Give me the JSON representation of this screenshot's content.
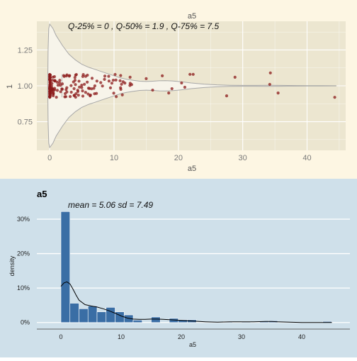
{
  "chart_data": [
    {
      "type": "violin",
      "title": "a5",
      "annotation": "Q-25% =  0 ,  Q-50% =  1.9 ,  Q-75% = 7.5",
      "xlabel": "a5",
      "ylabel": "1",
      "xlim": [
        -2,
        46
      ],
      "ylim": [
        0.55,
        1.45
      ],
      "xticks": [
        0,
        10,
        20,
        30,
        40
      ],
      "yticks": [
        0.75,
        1.0,
        1.25
      ],
      "ytick_labels": [
        "0.75",
        "1.00",
        "1.25"
      ],
      "quartiles": {
        "q25": 0,
        "q50": 1.9,
        "q75": 7.5
      },
      "grid": true,
      "colors": {
        "background": "#fdf6e3",
        "panel": "#ece6d0",
        "violin_fill": "#f7f4ea",
        "point": "#8b1a1a"
      }
    },
    {
      "type": "histogram",
      "title": "a5",
      "annotation": "mean =  5.06   sd = 7.49",
      "xlabel": "a5",
      "ylabel": "density",
      "xlim": [
        -4,
        48
      ],
      "ylim": [
        -0.015,
        0.335
      ],
      "xticks": [
        0,
        10,
        20,
        30,
        40
      ],
      "yticks": [
        0,
        0.1,
        0.2,
        0.3
      ],
      "ytick_labels": [
        "0%",
        "10%",
        "20%",
        "30%"
      ],
      "bin_width": 1.5,
      "bins": [
        {
          "x0": 0,
          "x1": 1.5,
          "value": 0.322
        },
        {
          "x0": 1.5,
          "x1": 3,
          "value": 0.056
        },
        {
          "x0": 3,
          "x1": 4.5,
          "value": 0.04
        },
        {
          "x0": 4.5,
          "x1": 6,
          "value": 0.048
        },
        {
          "x0": 6,
          "x1": 7.5,
          "value": 0.031
        },
        {
          "x0": 7.5,
          "x1": 9,
          "value": 0.044
        },
        {
          "x0": 9,
          "x1": 10.5,
          "value": 0.031
        },
        {
          "x0": 10.5,
          "x1": 12,
          "value": 0.022
        },
        {
          "x0": 12,
          "x1": 13.5,
          "value": 0.007
        },
        {
          "x0": 13.5,
          "x1": 15,
          "value": 0.0
        },
        {
          "x0": 15,
          "x1": 16.5,
          "value": 0.016
        },
        {
          "x0": 16.5,
          "x1": 18,
          "value": 0.0
        },
        {
          "x0": 18,
          "x1": 19.5,
          "value": 0.012
        },
        {
          "x0": 19.5,
          "x1": 21,
          "value": 0.008
        },
        {
          "x0": 21,
          "x1": 22.5,
          "value": 0.008
        },
        {
          "x0": 22.5,
          "x1": 24,
          "value": 0.0
        },
        {
          "x0": 24,
          "x1": 25.5,
          "value": 0.0
        },
        {
          "x0": 25.5,
          "x1": 27,
          "value": 0.0
        },
        {
          "x0": 27,
          "x1": 28.5,
          "value": 0.003
        },
        {
          "x0": 28.5,
          "x1": 30,
          "value": 0.0
        },
        {
          "x0": 30,
          "x1": 31.5,
          "value": 0.003
        },
        {
          "x0": 31.5,
          "x1": 33,
          "value": 0.0
        },
        {
          "x0": 33,
          "x1": 34.5,
          "value": 0.003
        },
        {
          "x0": 34.5,
          "x1": 36,
          "value": 0.005
        },
        {
          "x0": 36,
          "x1": 37.5,
          "value": 0.0
        },
        {
          "x0": 37.5,
          "x1": 39,
          "value": 0.0
        },
        {
          "x0": 39,
          "x1": 40.5,
          "value": 0.0
        },
        {
          "x0": 40.5,
          "x1": 42,
          "value": 0.0
        },
        {
          "x0": 42,
          "x1": 43.5,
          "value": 0.0
        },
        {
          "x0": 43.5,
          "x1": 45,
          "value": 0.003
        }
      ],
      "density_curve": [
        [
          0,
          0.105
        ],
        [
          0.5,
          0.115
        ],
        [
          1,
          0.118
        ],
        [
          1.5,
          0.112
        ],
        [
          2,
          0.097
        ],
        [
          2.5,
          0.08
        ],
        [
          3,
          0.065
        ],
        [
          4,
          0.052
        ],
        [
          5,
          0.048
        ],
        [
          6,
          0.045
        ],
        [
          7,
          0.04
        ],
        [
          8,
          0.034
        ],
        [
          9,
          0.027
        ],
        [
          10,
          0.019
        ],
        [
          11,
          0.013
        ],
        [
          12,
          0.01
        ],
        [
          13,
          0.009
        ],
        [
          14,
          0.009
        ],
        [
          15,
          0.01
        ],
        [
          16,
          0.01
        ],
        [
          17,
          0.009
        ],
        [
          18,
          0.008
        ],
        [
          19,
          0.007
        ],
        [
          20,
          0.006
        ],
        [
          21,
          0.005
        ],
        [
          22,
          0.004
        ],
        [
          23,
          0.003
        ],
        [
          24,
          0.002
        ],
        [
          26,
          0.001
        ],
        [
          28,
          0.002
        ],
        [
          30,
          0.002
        ],
        [
          32,
          0.002
        ],
        [
          34,
          0.003
        ],
        [
          35,
          0.003
        ],
        [
          36,
          0.002
        ],
        [
          38,
          0.001
        ],
        [
          40,
          0.0
        ],
        [
          42,
          0.0
        ],
        [
          44,
          0.0
        ],
        [
          45,
          0.0
        ]
      ],
      "grid": true,
      "colors": {
        "background": "#cfe0ea",
        "bar": "#3a6ea5",
        "bar_edge": "#ffffff",
        "curve": "#000000",
        "grid": "#ffffff"
      }
    }
  ]
}
